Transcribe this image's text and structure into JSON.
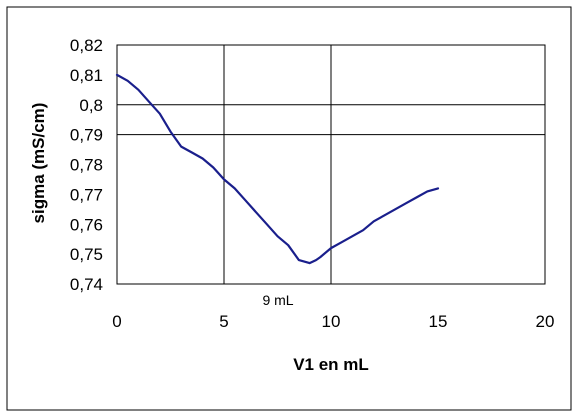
{
  "chart_data": {
    "type": "line",
    "title": "",
    "xlabel": "V1  en mL",
    "ylabel": "sigma (mS/cm)",
    "xlim": [
      0,
      20
    ],
    "ylim": [
      0.74,
      0.82
    ],
    "x_ticks": [
      "0",
      "5",
      "10",
      "15",
      "20"
    ],
    "y_ticks": [
      "0,74",
      "0,75",
      "0,76",
      "0,77",
      "0,78",
      "0,79",
      "0,8",
      "0,81",
      "0,82"
    ],
    "vertical_gridlines_at": [
      5,
      10
    ],
    "horizontal_gridlines_at": [
      0.79,
      0.8
    ],
    "annotation": "9 mL",
    "series": [
      {
        "color": "#1a1f8c",
        "x": [
          0,
          0.5,
          1,
          1.5,
          2,
          2.5,
          3,
          3.5,
          4,
          4.5,
          5,
          5.5,
          6,
          6.5,
          7,
          7.5,
          8,
          8.5,
          9,
          9.3,
          9.5,
          10,
          10.5,
          11,
          11.5,
          12,
          12.5,
          13,
          13.5,
          14,
          14.5,
          15
        ],
        "y": [
          0.81,
          0.808,
          0.805,
          0.801,
          0.797,
          0.791,
          0.786,
          0.784,
          0.782,
          0.779,
          0.775,
          0.772,
          0.768,
          0.764,
          0.76,
          0.756,
          0.753,
          0.748,
          0.747,
          0.748,
          0.749,
          0.752,
          0.754,
          0.756,
          0.758,
          0.761,
          0.763,
          0.765,
          0.767,
          0.769,
          0.771,
          0.772
        ]
      }
    ]
  }
}
